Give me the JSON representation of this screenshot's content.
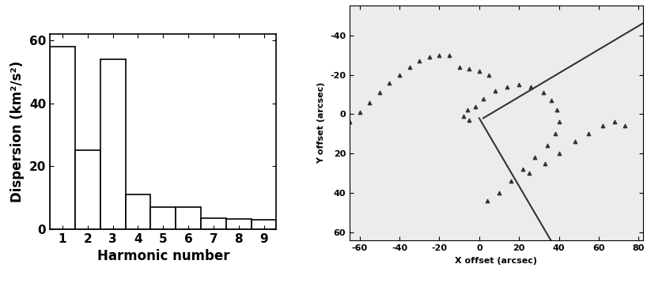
{
  "chart_data": [
    {
      "type": "bar",
      "xlabel": "Harmonic number",
      "ylabel": "Dispersion (km²/s²)",
      "categories": [
        "1",
        "2",
        "3",
        "4",
        "5",
        "6",
        "7",
        "8",
        "9"
      ],
      "values": [
        58,
        25,
        54,
        11,
        7,
        7,
        3.5,
        3.3,
        3
      ],
      "color": "#ffffff",
      "ylim": [
        0,
        62
      ],
      "yticks": [
        0,
        20,
        40,
        60
      ],
      "grid": false
    },
    {
      "type": "scatter",
      "xlabel": "X offset (arcsec)",
      "ylabel": "Y offset (arcsec)",
      "xlim": [
        -65,
        82
      ],
      "ylim": [
        64,
        -55
      ],
      "xticks": [
        -60,
        -40,
        -20,
        0,
        20,
        40,
        60,
        80
      ],
      "yticks": [
        -40,
        -20,
        0,
        20,
        40,
        60
      ],
      "grid": false,
      "series": [
        {
          "type": "scatter",
          "marker": "triangle",
          "color": "#333333",
          "x": [
            -65,
            -60,
            -55,
            -50,
            -45,
            -40,
            -35,
            -30,
            -25,
            -20,
            -15,
            -10,
            -5,
            0,
            5
          ],
          "values": [
            4,
            -1,
            -6,
            -11,
            -16,
            -20,
            -24,
            -27,
            -29,
            -30,
            -30,
            -24,
            -23,
            -22,
            -20
          ]
        },
        {
          "type": "scatter",
          "marker": "triangle",
          "color": "#333333",
          "x": [
            -5,
            -8,
            -6,
            -2,
            2,
            8,
            14,
            20,
            26,
            32,
            36,
            39,
            40,
            38,
            34,
            28,
            22,
            16,
            10,
            4
          ],
          "values": [
            3,
            1,
            -2,
            -4,
            -8,
            -12,
            -14,
            -15,
            -14,
            -11,
            -7,
            -2,
            4,
            10,
            16,
            22,
            28,
            34,
            40,
            44
          ]
        },
        {
          "type": "scatter",
          "marker": "triangle",
          "color": "#333333",
          "x": [
            25,
            33,
            40,
            48,
            55,
            62,
            68,
            73
          ],
          "values": [
            30,
            25,
            20,
            14,
            10,
            6,
            4,
            6
          ]
        },
        {
          "type": "line",
          "line_style": "solid",
          "color": "#333333",
          "x": [
            2,
            82
          ],
          "values": [
            2,
            -46
          ]
        },
        {
          "type": "line",
          "line_style": "solid",
          "color": "#333333",
          "x": [
            0,
            36
          ],
          "values": [
            2,
            64
          ]
        }
      ]
    }
  ]
}
